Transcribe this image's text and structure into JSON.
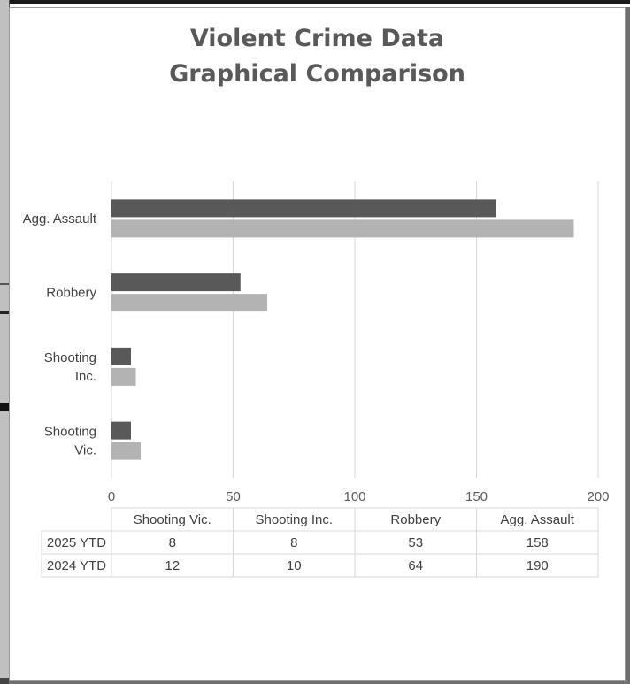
{
  "title_lines": [
    "Violent Crime Data",
    "Graphical Comparison"
  ],
  "chart_data": {
    "type": "bar",
    "orientation": "horizontal",
    "title": "Violent Crime Data Graphical Comparison",
    "categories": [
      "Shooting Vic.",
      "Shooting Inc.",
      "Robbery",
      "Agg. Assault"
    ],
    "category_axis_labels": [
      "Shooting Vic.",
      "Shooting Inc.",
      "Robbery",
      "Agg. Assault"
    ],
    "series": [
      {
        "name": "2025 YTD",
        "values": [
          8,
          8,
          53,
          158
        ],
        "color": "#595959"
      },
      {
        "name": "2024 YTD",
        "values": [
          12,
          10,
          64,
          190
        ],
        "color": "#b3b3b3"
      }
    ],
    "xlim": [
      0,
      200
    ],
    "xticks": [
      "0",
      "50",
      "100",
      "150",
      "200"
    ],
    "grid": true,
    "data_table": true,
    "xlabel": "",
    "ylabel": ""
  },
  "colors": {
    "series_2025": "#595959",
    "series_2024": "#b3b3b3",
    "gridline": "#d9d9d9",
    "title": "#595959"
  }
}
